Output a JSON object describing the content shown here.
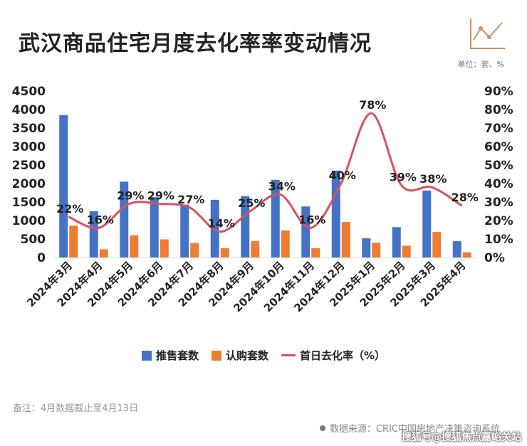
{
  "title": "武汉商品住宅月度去化率率变动情况",
  "unit_label": "单位：套、%",
  "note": "备注：4月数据截止至4月13日",
  "source": "数据来源：CRIC中国房地产决策咨询系统",
  "watermark": "搜狐号@搜狐焦点嘉峪关站",
  "colors": {
    "supply": "#4472C4",
    "subscribe": "#ED7D31",
    "rate": "#D9505E"
  },
  "icons": {
    "source_marker": "dot-icon",
    "decoration": "trend-chart-icon"
  },
  "chart_data": {
    "type": "bar",
    "categories": [
      "2024年3月",
      "2024年4月",
      "2024年5月",
      "2024年6月",
      "2024年7月",
      "2024年8月",
      "2024年9月",
      "2024年10月",
      "2024年11月",
      "2024年12月",
      "2025年1月",
      "2025年2月",
      "2025年3月",
      "2025年4月"
    ],
    "series": [
      {
        "name": "推售套数",
        "type": "bar",
        "axis": "left",
        "values": [
          3850,
          1250,
          2050,
          1630,
          1430,
          1560,
          1660,
          2100,
          1380,
          2350,
          520,
          820,
          1810,
          440
        ]
      },
      {
        "name": "认购套数",
        "type": "bar",
        "axis": "left",
        "values": [
          860,
          220,
          600,
          490,
          390,
          250,
          440,
          730,
          250,
          960,
          400,
          320,
          690,
          140
        ]
      },
      {
        "name": "首日去化率（%）",
        "type": "line",
        "axis": "right",
        "values": [
          22,
          16,
          29,
          29,
          27,
          14,
          25,
          34,
          16,
          40,
          78,
          39,
          38,
          28
        ],
        "labels": [
          "22%",
          "16%",
          "29%",
          "29%",
          "27%",
          "14%",
          "25%",
          "34%",
          "16%",
          "40%",
          "78%",
          "39%",
          "38%",
          "28%"
        ]
      }
    ],
    "y_left": {
      "min": 0,
      "max": 4500,
      "ticks": [
        "0",
        "500",
        "1000",
        "1500",
        "2000",
        "2500",
        "3000",
        "3500",
        "4000",
        "4500"
      ]
    },
    "y_right": {
      "min": 0,
      "max": 90,
      "ticks": [
        "0%",
        "10%",
        "20%",
        "30%",
        "40%",
        "50%",
        "60%",
        "70%",
        "80%",
        "90%"
      ]
    },
    "grid": false,
    "legend_position": "bottom"
  }
}
